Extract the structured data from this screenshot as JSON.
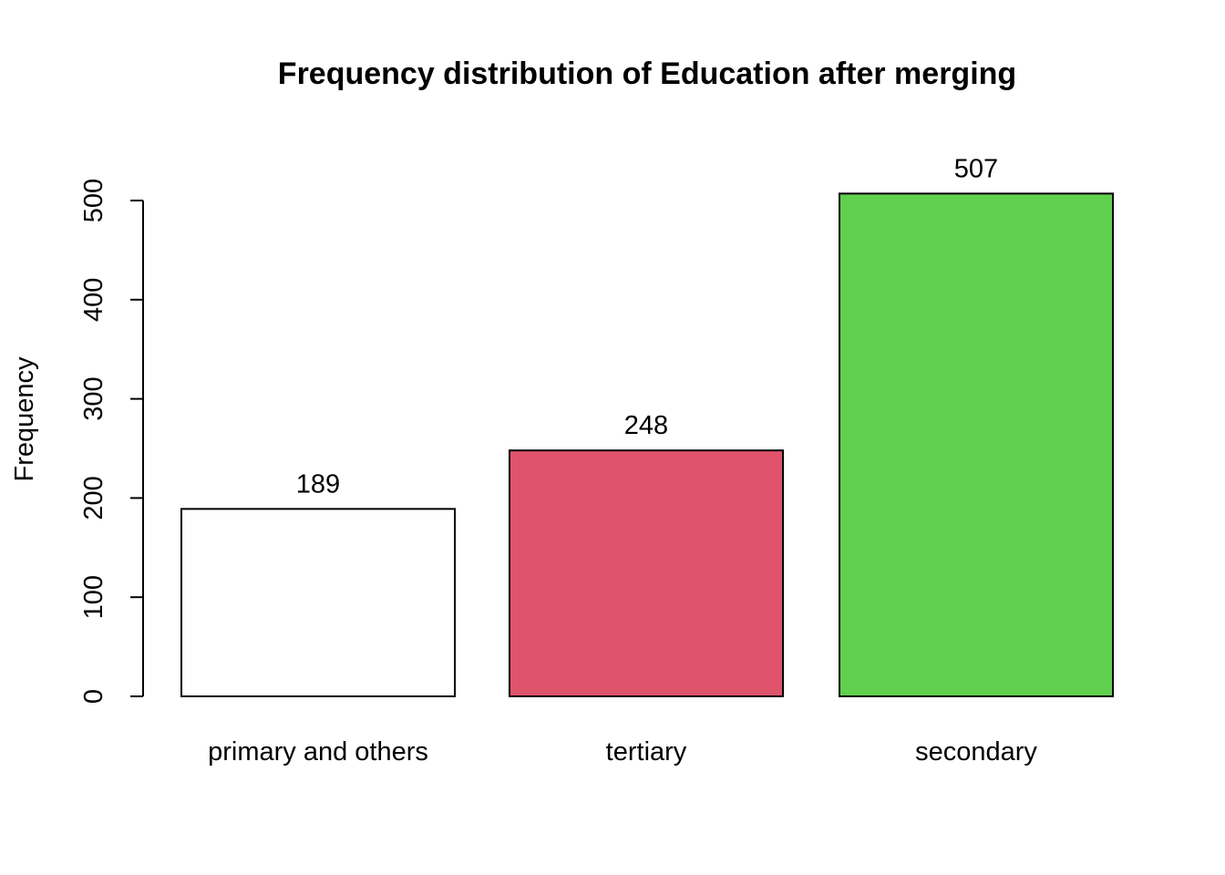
{
  "chart_data": {
    "type": "bar",
    "title": "Frequency distribution of Education after merging",
    "xlabel": "",
    "ylabel": "Frequency",
    "categories": [
      "primary and others",
      "tertiary",
      "secondary"
    ],
    "values": [
      189,
      248,
      507
    ],
    "data_labels": [
      "189",
      "248",
      "507"
    ],
    "bar_colors": [
      "#FFFFFF",
      "#DF536B",
      "#61D04F"
    ],
    "ylim": [
      0,
      500
    ],
    "yticks": [
      0,
      100,
      200,
      300,
      400,
      500
    ],
    "ytick_labels": [
      "0",
      "100",
      "200",
      "300",
      "400",
      "500"
    ],
    "grid": false,
    "legend": "none"
  }
}
